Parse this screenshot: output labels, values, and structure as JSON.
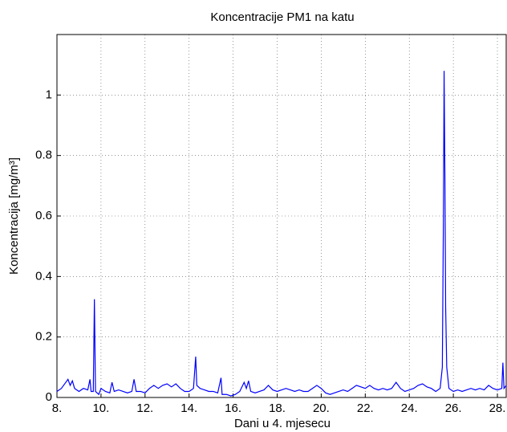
{
  "chart_data": {
    "type": "line",
    "title": "Koncentracije PM1 na katu",
    "x_label": "Dani u 4. mjesecu",
    "y_label": "Koncentracija [mg/m³]",
    "xlim": [
      8,
      28.4
    ],
    "ylim": [
      0,
      1.2
    ],
    "xticks": [
      {
        "value": 8,
        "label": "8."
      },
      {
        "value": 10,
        "label": "10."
      },
      {
        "value": 12,
        "label": "12."
      },
      {
        "value": 14,
        "label": "14."
      },
      {
        "value": 16,
        "label": "16."
      },
      {
        "value": 18,
        "label": "18."
      },
      {
        "value": 20,
        "label": "20."
      },
      {
        "value": 22,
        "label": "22."
      },
      {
        "value": 24,
        "label": "24."
      },
      {
        "value": 26,
        "label": "26."
      },
      {
        "value": 28,
        "label": "28."
      }
    ],
    "yticks": [
      0,
      0.2,
      0.4,
      0.6,
      0.8,
      1
    ],
    "grid": true,
    "x": [
      8.0,
      8.2,
      8.4,
      8.5,
      8.6,
      8.7,
      8.8,
      9.0,
      9.2,
      9.4,
      9.5,
      9.55,
      9.65,
      9.7,
      9.75,
      9.9,
      10.0,
      10.2,
      10.4,
      10.5,
      10.6,
      10.8,
      11.0,
      11.2,
      11.4,
      11.5,
      11.6,
      11.8,
      12.0,
      12.2,
      12.4,
      12.6,
      12.8,
      13.0,
      13.2,
      13.4,
      13.6,
      13.8,
      14.0,
      14.2,
      14.3,
      14.35,
      14.5,
      14.7,
      14.9,
      15.1,
      15.3,
      15.45,
      15.5,
      15.7,
      15.9,
      16.1,
      16.3,
      16.5,
      16.6,
      16.7,
      16.8,
      17.0,
      17.2,
      17.4,
      17.6,
      17.8,
      18.0,
      18.2,
      18.4,
      18.6,
      18.8,
      19.0,
      19.2,
      19.4,
      19.6,
      19.8,
      20.0,
      20.2,
      20.4,
      20.6,
      20.8,
      21.0,
      21.2,
      21.4,
      21.6,
      21.8,
      22.0,
      22.2,
      22.4,
      22.6,
      22.8,
      23.0,
      23.2,
      23.4,
      23.6,
      23.8,
      24.0,
      24.2,
      24.4,
      24.6,
      24.8,
      25.0,
      25.2,
      25.4,
      25.5,
      25.55,
      25.58,
      25.62,
      25.65,
      25.7,
      25.8,
      26.0,
      26.2,
      26.4,
      26.6,
      26.8,
      27.0,
      27.2,
      27.4,
      27.6,
      27.8,
      28.0,
      28.2,
      28.25,
      28.3,
      28.4
    ],
    "series": [
      {
        "color": "#0000ff",
        "values": [
          0.02,
          0.03,
          0.05,
          0.06,
          0.04,
          0.055,
          0.03,
          0.02,
          0.03,
          0.025,
          0.06,
          0.02,
          0.02,
          0.325,
          0.02,
          0.01,
          0.03,
          0.02,
          0.015,
          0.05,
          0.02,
          0.025,
          0.02,
          0.015,
          0.02,
          0.06,
          0.02,
          0.02,
          0.015,
          0.03,
          0.04,
          0.03,
          0.04,
          0.045,
          0.035,
          0.045,
          0.03,
          0.02,
          0.02,
          0.03,
          0.135,
          0.04,
          0.03,
          0.025,
          0.02,
          0.02,
          0.015,
          0.065,
          0.01,
          0.01,
          0.005,
          0.01,
          0.02,
          0.05,
          0.03,
          0.055,
          0.02,
          0.015,
          0.02,
          0.025,
          0.04,
          0.025,
          0.02,
          0.025,
          0.03,
          0.025,
          0.02,
          0.025,
          0.02,
          0.02,
          0.03,
          0.04,
          0.03,
          0.015,
          0.01,
          0.015,
          0.02,
          0.025,
          0.02,
          0.03,
          0.04,
          0.035,
          0.03,
          0.04,
          0.03,
          0.025,
          0.03,
          0.025,
          0.03,
          0.05,
          0.03,
          0.02,
          0.025,
          0.03,
          0.04,
          0.045,
          0.035,
          0.03,
          0.02,
          0.03,
          0.1,
          0.6,
          1.08,
          0.7,
          0.3,
          0.1,
          0.03,
          0.02,
          0.025,
          0.02,
          0.025,
          0.03,
          0.025,
          0.03,
          0.025,
          0.04,
          0.03,
          0.025,
          0.03,
          0.115,
          0.03,
          0.04
        ]
      }
    ]
  }
}
